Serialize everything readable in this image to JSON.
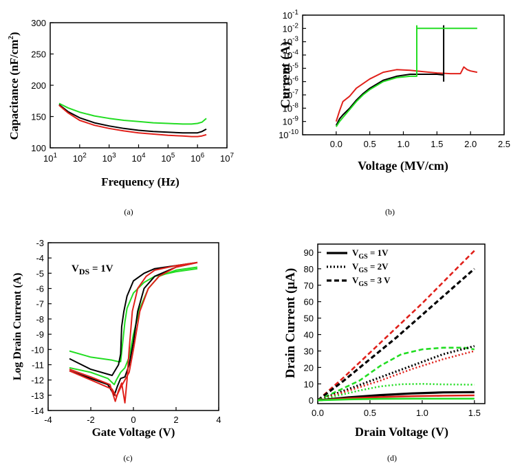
{
  "colors": {
    "black": "#000000",
    "red": "#e0201a",
    "green": "#22dd22"
  },
  "chart_data": [
    {
      "id": "a",
      "caption": "(a)",
      "type": "line",
      "xlabel": "Frequency (Hz)",
      "ylabel": "Capacitance (nF/cm",
      "ylabel_sup": "2",
      "ylabel_end": ")",
      "xscale": "log",
      "xlim": [
        1,
        7
      ],
      "ylim": [
        100,
        300
      ],
      "xticks": [
        {
          "base": "10",
          "exp": "1"
        },
        {
          "base": "10",
          "exp": "2"
        },
        {
          "base": "10",
          "exp": "3"
        },
        {
          "base": "10",
          "exp": "4"
        },
        {
          "base": "10",
          "exp": "5"
        },
        {
          "base": "10",
          "exp": "6"
        },
        {
          "base": "10",
          "exp": "7"
        }
      ],
      "yticks": [
        "100",
        "150",
        "200",
        "250",
        "300"
      ],
      "series": [
        {
          "color": "green",
          "style": "solid",
          "x": [
            1.3,
            1.6,
            2,
            2.5,
            3,
            3.5,
            4,
            4.5,
            5,
            5.5,
            5.8,
            6,
            6.15,
            6.3
          ],
          "y": [
            171,
            164,
            157,
            151,
            147,
            144,
            142,
            140,
            139,
            138,
            138,
            139,
            141,
            147
          ]
        },
        {
          "color": "black",
          "style": "solid",
          "x": [
            1.3,
            1.6,
            2,
            2.5,
            3,
            3.5,
            4,
            4.5,
            5,
            5.5,
            5.8,
            6,
            6.15,
            6.3
          ],
          "y": [
            169,
            158,
            148,
            140,
            135,
            131,
            128,
            126,
            125,
            124,
            124,
            124,
            126,
            130
          ]
        },
        {
          "color": "red",
          "style": "solid",
          "x": [
            1.3,
            1.6,
            2,
            2.5,
            3,
            3.5,
            4,
            4.5,
            5,
            5.5,
            5.8,
            6,
            6.15,
            6.3
          ],
          "y": [
            168,
            156,
            144,
            136,
            131,
            127,
            124,
            122,
            120,
            119,
            118,
            118,
            119,
            121
          ]
        }
      ]
    },
    {
      "id": "b",
      "caption": "(b)",
      "type": "line",
      "xlabel": "Voltage (MV/cm)",
      "ylabel": "Current (A)",
      "yscale": "log",
      "xlim": [
        -0.5,
        2.5
      ],
      "ylim": [
        -10,
        -1
      ],
      "xticks": [
        "0.0",
        "0.5",
        "1.0",
        "1.5",
        "2.0",
        "2.5"
      ],
      "yticks": [
        {
          "base": "10",
          "exp": "-1"
        },
        {
          "base": "10",
          "exp": "-2"
        },
        {
          "base": "10",
          "exp": "-3"
        },
        {
          "base": "10",
          "exp": "-4"
        },
        {
          "base": "10",
          "exp": "-5"
        },
        {
          "base": "10",
          "exp": "-6"
        },
        {
          "base": "10",
          "exp": "-7"
        },
        {
          "base": "10",
          "exp": "-8"
        },
        {
          "base": "10",
          "exp": "-9"
        },
        {
          "base": "10",
          "exp": "-10"
        }
      ],
      "series": [
        {
          "color": "red",
          "style": "solid",
          "x": [
            0,
            0.05,
            0.1,
            0.2,
            0.3,
            0.5,
            0.7,
            0.9,
            1.1,
            1.3,
            1.5,
            1.7,
            1.85,
            1.9,
            1.95,
            2.0,
            2.1
          ],
          "y": [
            -9.0,
            -8.2,
            -7.5,
            -7.1,
            -6.5,
            -5.8,
            -5.3,
            -5.1,
            -5.15,
            -5.25,
            -5.35,
            -5.4,
            -5.4,
            -4.9,
            -5.1,
            -5.2,
            -5.3
          ]
        },
        {
          "color": "black",
          "style": "solid",
          "x": [
            0,
            0.05,
            0.1,
            0.2,
            0.3,
            0.4,
            0.5,
            0.7,
            0.9,
            1.1,
            1.3,
            1.5,
            1.6,
            1.6,
            1.6
          ],
          "y": [
            -9.3,
            -8.8,
            -8.5,
            -8.0,
            -7.4,
            -6.9,
            -6.5,
            -5.9,
            -5.6,
            -5.45,
            -5.45,
            -5.45,
            -5.5,
            -1.8,
            -6.0
          ]
        },
        {
          "color": "green",
          "style": "solid",
          "x": [
            0,
            0.05,
            0.1,
            0.2,
            0.3,
            0.4,
            0.5,
            0.7,
            0.9,
            1.1,
            1.2,
            1.2,
            1.2,
            2.1
          ],
          "y": [
            -9.4,
            -9.0,
            -8.7,
            -8.1,
            -7.5,
            -7.0,
            -6.6,
            -6.0,
            -5.7,
            -5.6,
            -5.6,
            -1.8,
            -2.0,
            -2.0
          ]
        }
      ]
    },
    {
      "id": "c",
      "caption": "(c)",
      "type": "line",
      "xlabel": "Gate Voltage (V)",
      "ylabel": "Log Drain Current (A)",
      "annotation": {
        "main": "V",
        "sub": "DS",
        "rest": " = 1V"
      },
      "xlim": [
        -4,
        4
      ],
      "ylim": [
        -14,
        -3
      ],
      "xticks": [
        "-4",
        "-2",
        "0",
        "2",
        "4"
      ],
      "yticks": [
        "-3",
        "-4",
        "-5",
        "-6",
        "-7",
        "-8",
        "-9",
        "-10",
        "-11",
        "-12",
        "-13",
        "-14"
      ],
      "series": [
        {
          "color": "green",
          "style": "solid",
          "x": [
            -3,
            -2,
            -1,
            -0.7,
            -0.6,
            -0.5,
            -0.4,
            -0.3,
            0,
            0.5,
            1,
            2,
            3
          ],
          "y": [
            -10.1,
            -10.5,
            -10.7,
            -10.8,
            -10.8,
            -9.5,
            -8.2,
            -7.3,
            -6.3,
            -5.6,
            -5.2,
            -4.9,
            -4.7
          ]
        },
        {
          "color": "green",
          "style": "solid",
          "x": [
            -3,
            -2,
            -1.2,
            -0.9,
            -0.8,
            -0.6,
            -0.4,
            -0.2,
            0,
            0.3,
            0.7,
            1.2,
            2,
            3
          ],
          "y": [
            -11.2,
            -11.5,
            -11.9,
            -12.3,
            -12.0,
            -11.5,
            -11.2,
            -10.5,
            -9.0,
            -7.3,
            -6.0,
            -5.2,
            -4.8,
            -4.6
          ]
        },
        {
          "color": "black",
          "style": "solid",
          "x": [
            -3,
            -2,
            -1,
            -0.7,
            -0.6,
            -0.55,
            -0.45,
            -0.3,
            0,
            0.5,
            1,
            2,
            3
          ],
          "y": [
            -10.6,
            -11.3,
            -11.7,
            -11.0,
            -10.3,
            -8.5,
            -7.5,
            -6.5,
            -5.5,
            -5.0,
            -4.7,
            -4.5,
            -4.3
          ]
        },
        {
          "color": "black",
          "style": "solid",
          "x": [
            -3,
            -2,
            -1.2,
            -0.9,
            -0.75,
            -0.6,
            -0.4,
            -0.2,
            0,
            0.2,
            0.5,
            1,
            2,
            3
          ],
          "y": [
            -11.4,
            -11.9,
            -12.3,
            -13.0,
            -12.4,
            -11.9,
            -11.8,
            -11.0,
            -9.5,
            -7.5,
            -6.0,
            -5.2,
            -4.6,
            -4.3
          ]
        },
        {
          "color": "red",
          "style": "solid",
          "x": [
            -3,
            -2,
            -1.1,
            -0.85,
            -0.7,
            -0.55,
            -0.4,
            -0.3,
            -0.2,
            -0.05,
            0.2,
            0.6,
            1,
            2,
            3
          ],
          "y": [
            -11.3,
            -11.8,
            -12.3,
            -13.4,
            -12.7,
            -12.2,
            -13.5,
            -12.0,
            -10.0,
            -7.5,
            -6.0,
            -5.2,
            -4.8,
            -4.5,
            -4.3
          ]
        },
        {
          "color": "red",
          "style": "solid",
          "x": [
            -3,
            -2,
            -1,
            -0.8,
            -0.6,
            -0.4,
            -0.2,
            0,
            0.3,
            0.7,
            1.2,
            2,
            3
          ],
          "y": [
            -11.4,
            -12.0,
            -12.6,
            -13.1,
            -12.5,
            -12.0,
            -11.5,
            -10.0,
            -7.5,
            -6.0,
            -5.2,
            -4.6,
            -4.3
          ]
        }
      ]
    },
    {
      "id": "d",
      "caption": "(d)",
      "type": "line",
      "xlabel": "Drain Voltage (V)",
      "ylabel": "Drain Current (μA)",
      "xlim": [
        0,
        1.6
      ],
      "ylim": [
        -2,
        95
      ],
      "xticks": [
        "0.0",
        "0.5",
        "1.0",
        "1.5"
      ],
      "yticks": [
        "0",
        "10",
        "20",
        "30",
        "40",
        "50",
        "60",
        "70",
        "80",
        "90"
      ],
      "legend": [
        {
          "main": "V",
          "sub": "GS",
          "rest": " = 1V",
          "style": "solid"
        },
        {
          "main": "V",
          "sub": "GS",
          "rest": " = 2V",
          "style": "dotted"
        },
        {
          "main": "V",
          "sub": "GS",
          "rest": " = 3 V",
          "style": "dashed"
        }
      ],
      "series": [
        {
          "color": "red",
          "style": "dashed",
          "x": [
            0,
            0.25,
            0.5,
            0.75,
            1.0,
            1.25,
            1.5
          ],
          "y": [
            0,
            14,
            29,
            44,
            59,
            75,
            91
          ]
        },
        {
          "color": "black",
          "style": "dashed",
          "x": [
            0,
            0.25,
            0.5,
            0.75,
            1.0,
            1.25,
            1.5
          ],
          "y": [
            0,
            12,
            25,
            38,
            52,
            66,
            80
          ]
        },
        {
          "color": "green",
          "style": "dashed",
          "x": [
            0,
            0.2,
            0.4,
            0.6,
            0.8,
            1.0,
            1.2,
            1.4,
            1.5
          ],
          "y": [
            0,
            6,
            12,
            21,
            28,
            31,
            32,
            32,
            31
          ]
        },
        {
          "color": "black",
          "style": "dotted",
          "x": [
            0,
            0.3,
            0.6,
            0.9,
            1.2,
            1.5
          ],
          "y": [
            0,
            7,
            14,
            21,
            28,
            33
          ]
        },
        {
          "color": "red",
          "style": "dotted",
          "x": [
            0,
            0.3,
            0.6,
            0.9,
            1.2,
            1.5
          ],
          "y": [
            0,
            6,
            12,
            19,
            25,
            30
          ]
        },
        {
          "color": "green",
          "style": "dotted",
          "x": [
            0,
            0.2,
            0.4,
            0.6,
            0.8,
            1.0,
            1.2,
            1.5
          ],
          "y": [
            0,
            3,
            6,
            8.5,
            9.8,
            10,
            9.7,
            9.5
          ]
        },
        {
          "color": "black",
          "style": "solid",
          "x": [
            0,
            0.3,
            0.6,
            0.9,
            1.2,
            1.5
          ],
          "y": [
            0,
            1.8,
            3.2,
            4.2,
            4.8,
            5
          ]
        },
        {
          "color": "red",
          "style": "solid",
          "x": [
            0,
            0.3,
            0.6,
            0.9,
            1.2,
            1.5
          ],
          "y": [
            0,
            1.2,
            2.0,
            2.5,
            2.8,
            3
          ]
        },
        {
          "color": "green",
          "style": "solid",
          "x": [
            0,
            0.3,
            0.6,
            0.9,
            1.2,
            1.5
          ],
          "y": [
            0,
            0.6,
            0.9,
            1.0,
            1.0,
            1.0
          ]
        }
      ]
    }
  ]
}
